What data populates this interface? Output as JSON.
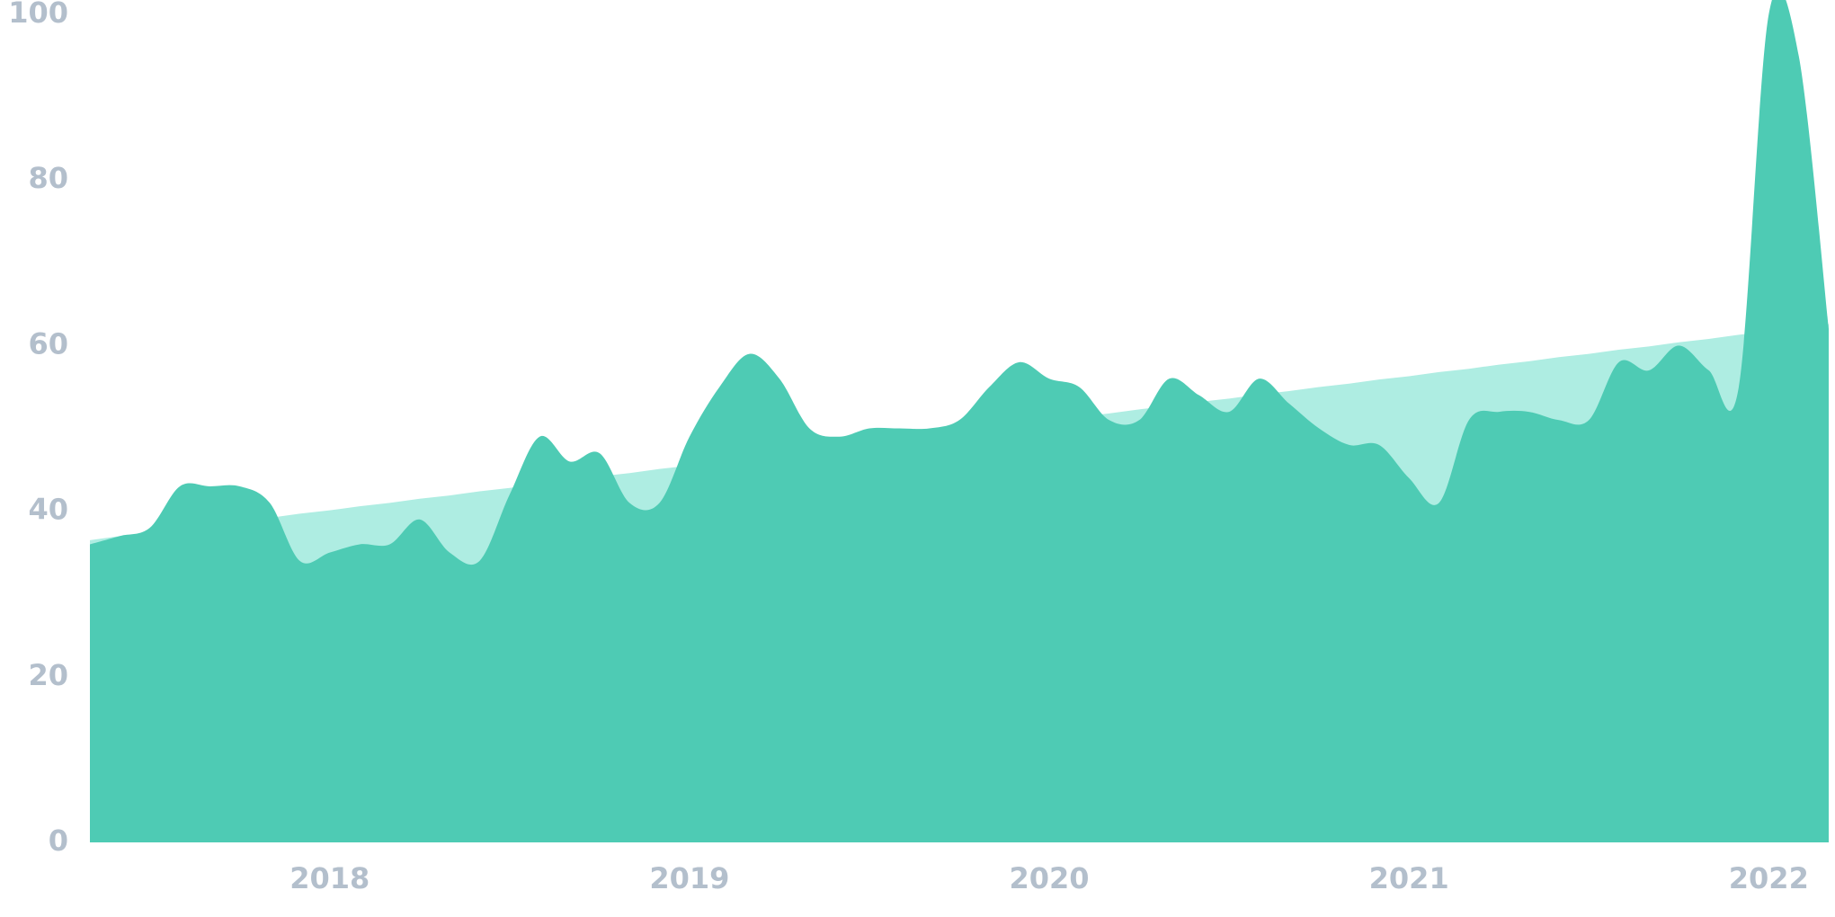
{
  "chart_data": {
    "type": "area",
    "categories": [
      null,
      null,
      null,
      null,
      null,
      null,
      null,
      null,
      "2018",
      null,
      null,
      null,
      null,
      null,
      null,
      null,
      null,
      null,
      null,
      null,
      "2019",
      null,
      null,
      null,
      null,
      null,
      null,
      null,
      null,
      null,
      null,
      null,
      "2020",
      null,
      null,
      null,
      null,
      null,
      null,
      null,
      null,
      null,
      null,
      null,
      "2021",
      null,
      null,
      null,
      null,
      null,
      null,
      null,
      null,
      null,
      null,
      null,
      "2022",
      null,
      null
    ],
    "series": [
      {
        "color": "#aeede2",
        "values": [
          36.5,
          37.0,
          37.4,
          37.9,
          38.3,
          38.8,
          39.2,
          39.7,
          40.1,
          40.6,
          41.0,
          41.5,
          41.9,
          42.4,
          42.8,
          43.3,
          43.7,
          44.2,
          44.6,
          45.1,
          45.5,
          46.0,
          46.4,
          46.9,
          47.3,
          47.8,
          48.2,
          48.7,
          49.1,
          49.6,
          50.0,
          50.5,
          50.9,
          51.4,
          51.8,
          52.3,
          52.7,
          53.2,
          53.6,
          54.1,
          54.5,
          55.0,
          55.4,
          55.9,
          56.3,
          56.8,
          57.2,
          57.7,
          58.1,
          58.6,
          59.0,
          59.5,
          59.9,
          60.4,
          60.8,
          61.3,
          61.7,
          62.2,
          62.6
        ]
      },
      {
        "color": "#4ecbb4",
        "values": [
          36,
          37,
          38,
          43,
          43,
          43,
          41,
          34,
          35,
          36,
          36,
          39,
          35,
          34,
          42,
          49,
          46,
          47,
          41,
          41,
          49,
          55,
          59,
          56,
          50,
          49,
          50,
          50,
          50,
          51,
          55,
          58,
          56,
          55,
          51,
          51,
          56,
          54,
          52,
          56,
          53,
          50,
          48,
          48,
          44,
          41,
          51,
          52,
          52,
          51,
          51,
          58,
          57,
          60,
          57,
          55,
          100,
          95,
          62
        ]
      }
    ],
    "ylim": [
      0,
      100
    ],
    "yticks": [
      0,
      20,
      40,
      60,
      80,
      100
    ]
  }
}
